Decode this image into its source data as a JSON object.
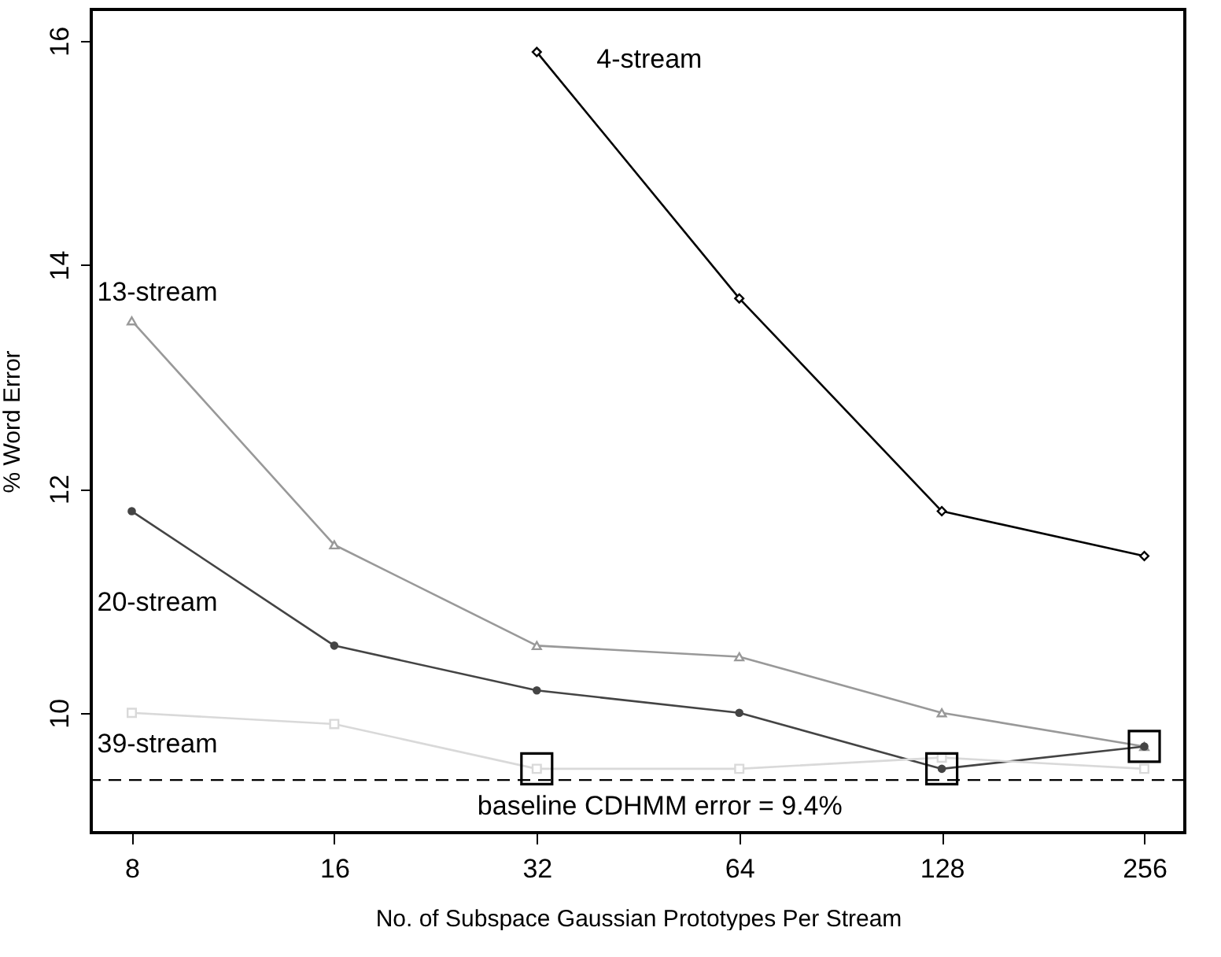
{
  "chart_data": {
    "type": "line",
    "xlabel": "No. of Subspace Gaussian Prototypes Per Stream",
    "ylabel": "% Word Error",
    "categories": [
      "8",
      "16",
      "32",
      "64",
      "128",
      "256"
    ],
    "ylim": [
      8.93,
      16.28
    ],
    "yticks": [
      10,
      12,
      14,
      16
    ],
    "grid": false,
    "legend": false,
    "line_style": "solid",
    "series": [
      {
        "name": "4-stream",
        "color": "#000000",
        "marker": "diamond",
        "values": [
          null,
          null,
          15.9,
          13.7,
          11.8,
          11.4
        ]
      },
      {
        "name": "13-stream",
        "color": "#999999",
        "marker": "triangle",
        "values": [
          13.5,
          11.5,
          10.6,
          10.5,
          10.0,
          9.7
        ]
      },
      {
        "name": "20-stream",
        "color": "#444444",
        "marker": "circle",
        "values": [
          11.8,
          10.6,
          10.2,
          10.0,
          9.5,
          9.7
        ]
      },
      {
        "name": "39-stream",
        "color": "#d9d9d9",
        "marker": "square",
        "values": [
          10.0,
          9.9,
          9.5,
          9.5,
          9.6,
          9.5
        ]
      },
      {
        "type": "scatter",
        "color": "#000000",
        "marker": "square",
        "values": [
          null,
          null,
          9.5,
          null,
          9.5,
          9.7
        ]
      }
    ],
    "ref_lines": [
      {
        "axis": "y",
        "value": 9.4,
        "label": "baseline CDHMM error = 9.4%",
        "line_style": "dashed",
        "color": "#000000"
      }
    ]
  }
}
